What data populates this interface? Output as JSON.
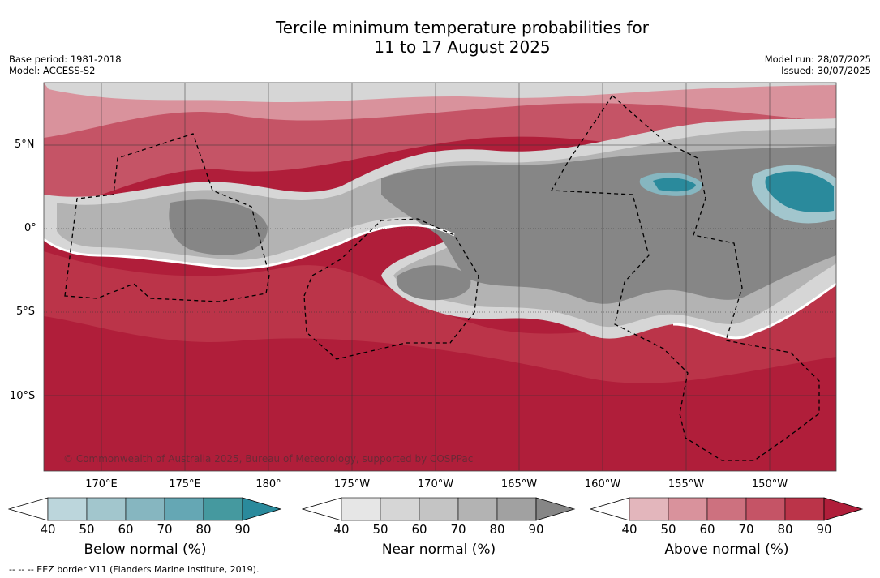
{
  "header": {
    "title_line1": "Tercile minimum temperature probabilities for",
    "title_line2": "11 to 17 August 2025",
    "base_period": "Base period: 1981-2018",
    "model": "Model: ACCESS-S2",
    "model_run": "Model run: 28/07/2025",
    "issued": "Issued: 30/07/2025"
  },
  "map": {
    "lat_labels": [
      "5°N",
      "0°",
      "5°S",
      "10°S"
    ],
    "lon_labels": [
      "170°E",
      "175°E",
      "180°",
      "175°W",
      "170°W",
      "165°W",
      "160°W",
      "155°W",
      "150°W"
    ],
    "copyright": "© Commonwealth of Australia 2025, Bureau of Meteorology, supported by COSPPac"
  },
  "colorbars": {
    "below": {
      "title": "Below normal (%)",
      "ticks": [
        "40",
        "50",
        "60",
        "70",
        "80",
        "90"
      ],
      "colors": [
        "#ffffff",
        "#bcd6dc",
        "#a2c6cd",
        "#86b6c0",
        "#65a7b4",
        "#45999f",
        "#2a8a9c"
      ]
    },
    "near": {
      "title": "Near normal (%)",
      "ticks": [
        "40",
        "50",
        "60",
        "70",
        "80",
        "90"
      ],
      "colors": [
        "#ffffff",
        "#e6e6e6",
        "#d6d6d6",
        "#c4c4c4",
        "#b3b3b3",
        "#a1a1a1",
        "#868686"
      ]
    },
    "above": {
      "title": "Above normal (%)",
      "ticks": [
        "40",
        "50",
        "60",
        "70",
        "80",
        "90"
      ],
      "colors": [
        "#ffffff",
        "#e3b6bc",
        "#d9929c",
        "#cd717f",
        "#c55466",
        "#bb3449",
        "#b01e3a"
      ]
    }
  },
  "footer": {
    "eez_note": "--  --  -- EEZ border V11 (Flanders Marine Institute, 2019)."
  }
}
